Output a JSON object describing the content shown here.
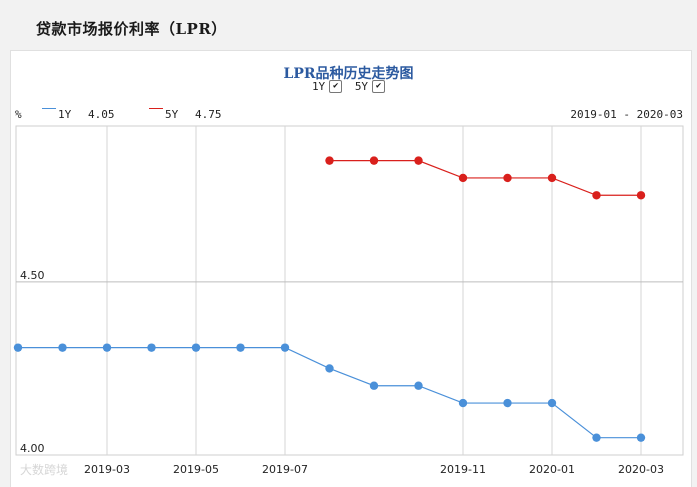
{
  "page": {
    "title": "贷款市场报价利率（LPR）"
  },
  "chart_header": {
    "title": "LPR品种历史走势图",
    "toggles": [
      {
        "label": "1Y",
        "checked": true
      },
      {
        "label": "5Y",
        "checked": true
      }
    ],
    "unit": "%",
    "date_range": "2019-01 - 2020-03"
  },
  "legend": [
    {
      "label": "1Y",
      "value": "4.05",
      "color": "#4a90d9"
    },
    {
      "label": "5Y",
      "value": "4.75",
      "color": "#d9201c"
    }
  ],
  "watermark": "大数跨境",
  "chart_data": {
    "type": "line",
    "title": "LPR品种历史走势图",
    "x": [
      "2019-01",
      "2019-02",
      "2019-03",
      "2019-04",
      "2019-05",
      "2019-06",
      "2019-07",
      "2019-08",
      "2019-09",
      "2019-10",
      "2019-11",
      "2019-12",
      "2020-01",
      "2020-02",
      "2020-03"
    ],
    "x_tick_labels": [
      "2019-03",
      "2019-05",
      "2019-07",
      "2019-11",
      "2020-01",
      "2020-03"
    ],
    "series": [
      {
        "name": "1Y",
        "color": "#4a90d9",
        "values": [
          4.31,
          4.31,
          4.31,
          4.31,
          4.31,
          4.31,
          4.31,
          4.25,
          4.2,
          4.2,
          4.15,
          4.15,
          4.15,
          4.05,
          4.05
        ]
      },
      {
        "name": "5Y",
        "color": "#d9201c",
        "values": [
          null,
          null,
          null,
          null,
          null,
          null,
          null,
          4.85,
          4.85,
          4.85,
          4.8,
          4.8,
          4.8,
          4.75,
          4.75
        ]
      }
    ],
    "ylim": [
      4.0,
      4.95
    ],
    "y_tick_labels": [
      "4.00",
      "4.50"
    ],
    "y_ticks": [
      4.0,
      4.5
    ],
    "grid": true,
    "legend_position": "top-left"
  }
}
